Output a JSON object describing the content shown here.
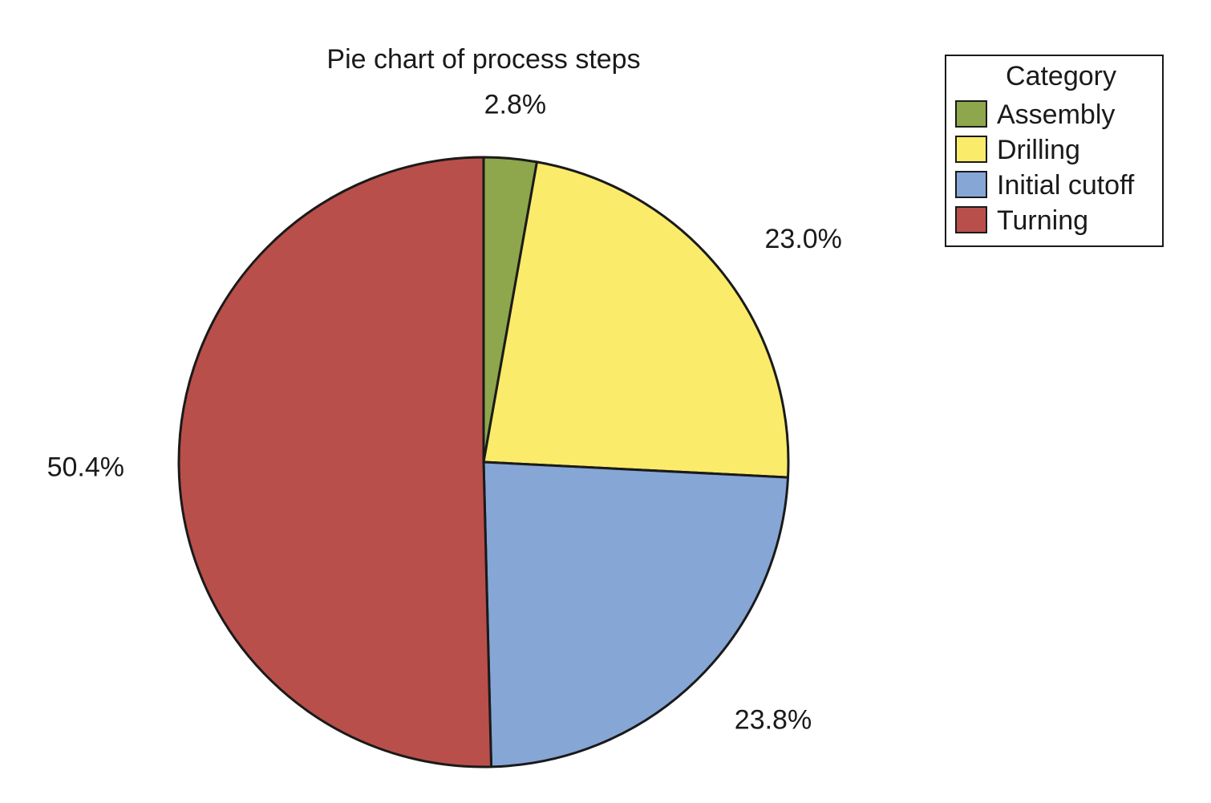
{
  "chart_data": {
    "type": "pie",
    "title": "Pie chart of process steps",
    "start_angle": "12 o'clock",
    "direction": "clockwise",
    "label_format": "percent",
    "legend": {
      "title": "Category",
      "placement": "top-right"
    },
    "slices": [
      {
        "category": "Assembly",
        "percent": 2.8,
        "label": "2.8%",
        "color": "#8ea64c"
      },
      {
        "category": "Drilling",
        "percent": 23.0,
        "label": "23.0%",
        "color": "#fbeb6b"
      },
      {
        "category": "Initial cutoff",
        "percent": 23.8,
        "label": "23.8%",
        "color": "#86a6d6"
      },
      {
        "category": "Turning",
        "percent": 50.4,
        "label": "50.4%",
        "color": "#b94f4a"
      }
    ]
  }
}
